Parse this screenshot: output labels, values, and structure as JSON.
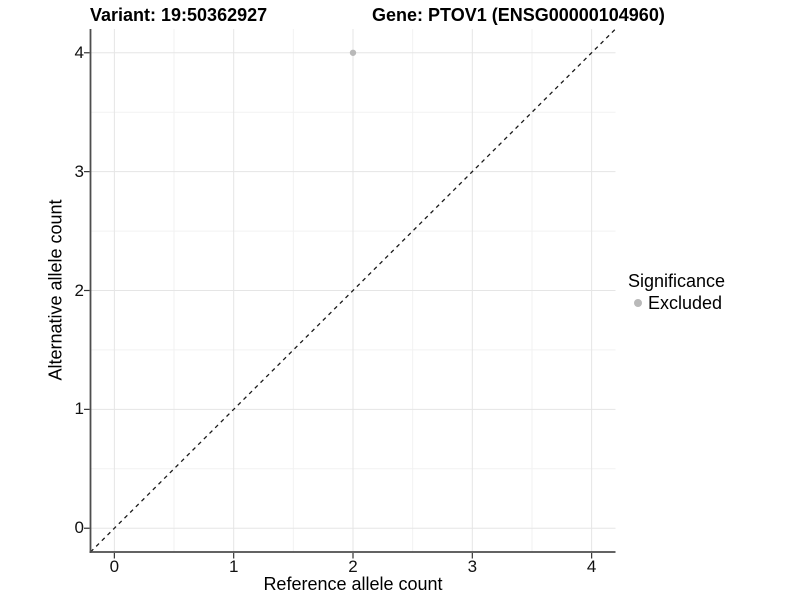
{
  "figure": {
    "title_left": "Variant: 19:50362927",
    "title_right": "Gene: PTOV1 (ENSG00000104960)"
  },
  "chart_data": {
    "type": "scatter",
    "title_left": "Variant: 19:50362927",
    "title_right": "Gene: PTOV1 (ENSG00000104960)",
    "xlabel": "Reference allele count",
    "ylabel": "Alternative allele count",
    "xlim": [
      -0.2,
      4.2
    ],
    "ylim": [
      -0.2,
      4.2
    ],
    "x_ticks": [
      {
        "value": 0,
        "label": "0"
      },
      {
        "value": 1,
        "label": "1"
      },
      {
        "value": 2,
        "label": "2"
      },
      {
        "value": 3,
        "label": "3"
      },
      {
        "value": 4,
        "label": "4"
      }
    ],
    "y_ticks": [
      {
        "value": 0,
        "label": "0"
      },
      {
        "value": 1,
        "label": "1"
      },
      {
        "value": 2,
        "label": "2"
      },
      {
        "value": 3,
        "label": "3"
      },
      {
        "value": 4,
        "label": "4"
      }
    ],
    "x_minor_breaks": [
      0.5,
      1.5,
      2.5,
      3.5
    ],
    "y_minor_breaks": [
      0.5,
      1.5,
      2.5,
      3.5
    ],
    "grid": true,
    "points": [
      {
        "x": 2,
        "y": 4,
        "significance": "Excluded"
      }
    ],
    "abline": {
      "slope": 1,
      "intercept": 0,
      "linetype": "dashed"
    },
    "legend": {
      "title": "Significance",
      "position": "right",
      "entries": [
        {
          "label": "Excluded",
          "color": "#b9b9b9"
        }
      ]
    }
  },
  "colors": {
    "background": "#ffffff",
    "grid_major": "#e5e5e5",
    "grid_minor": "#f2f2f2",
    "axis_line": "#4d4d4d",
    "tick_mark": "#333333",
    "abline": "#1a1a1a",
    "point_excluded": "#b9b9b9",
    "text": "#000000"
  }
}
